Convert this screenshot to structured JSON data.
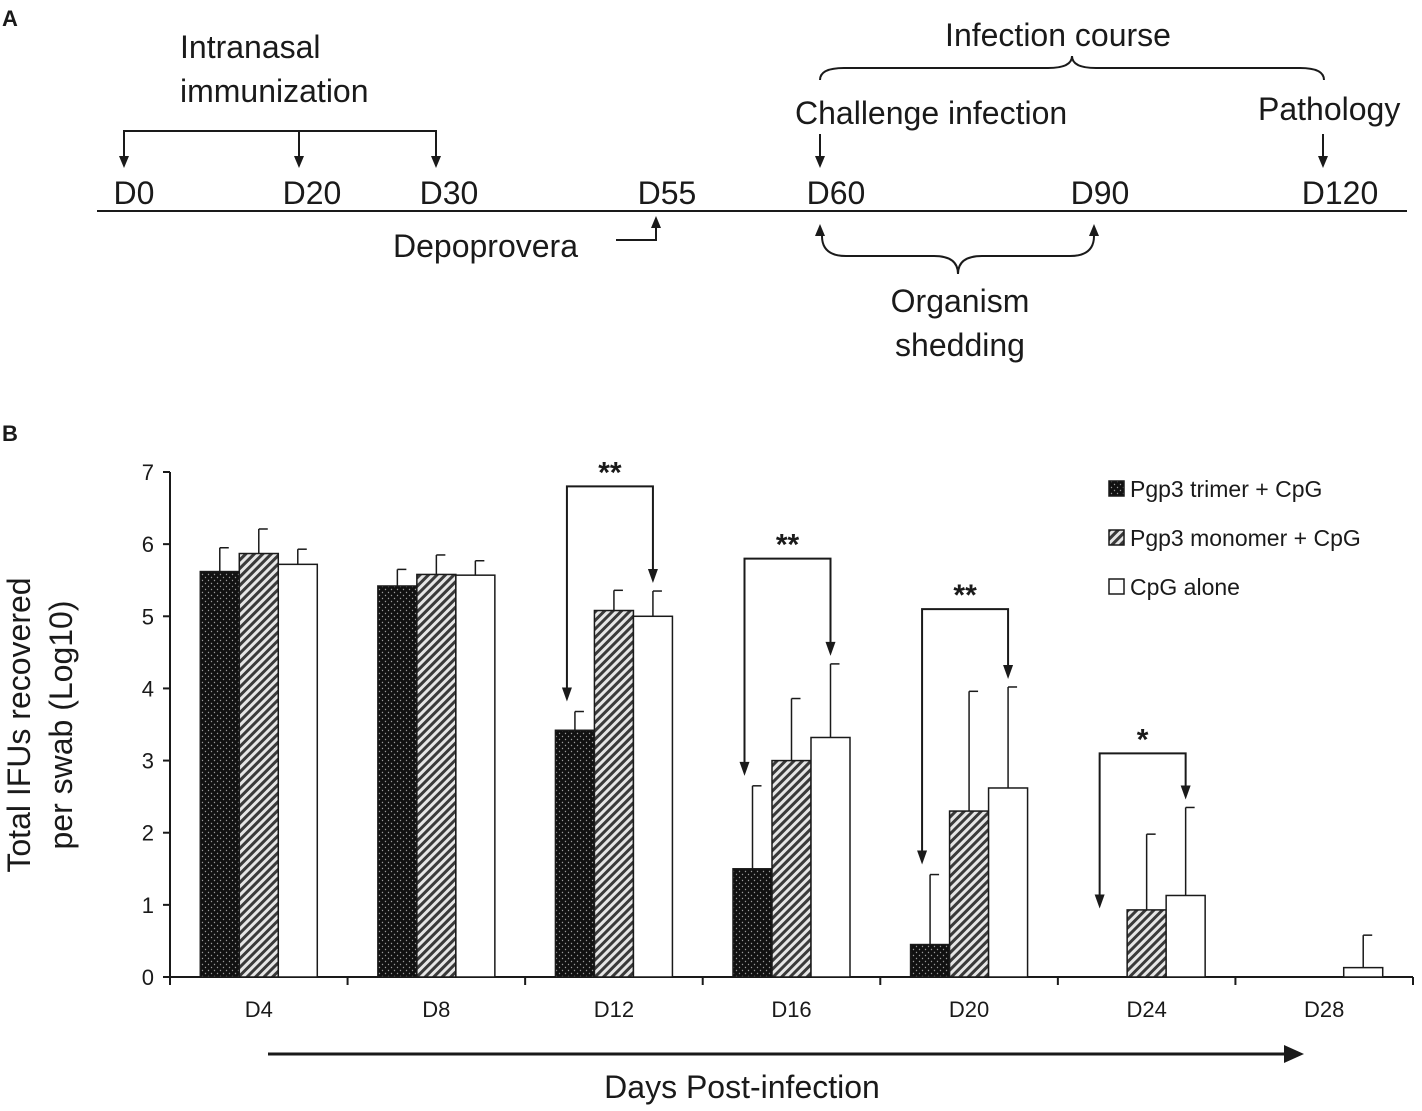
{
  "panel_a": {
    "label": "A",
    "timeline_marks": [
      "D0",
      "D20",
      "D30",
      "D55",
      "D60",
      "D90",
      "D120"
    ],
    "immunization_label_line1": "Intranasal",
    "immunization_label_line2": "immunization",
    "depoprovera_label": "Depoprovera",
    "challenge_label": "Challenge infection",
    "infection_course_label": "Infection course",
    "pathology_label": "Pathology",
    "shedding_label_line1": "Organism",
    "shedding_label_line2": "shedding"
  },
  "panel_b": {
    "label": "B",
    "arrow_label": "Days Post-infection"
  },
  "colors": {
    "ink": "#1a1a1a",
    "trimer_fill": "#111111",
    "monomer_fill": "#cfcfcf",
    "cpg_fill": "#ffffff"
  },
  "chart_data": {
    "type": "bar",
    "title": "",
    "xlabel": "",
    "ylabel_line1": "Total IFUs recovered",
    "ylabel_line2": "per swab (Log10)",
    "ylim": [
      0,
      7
    ],
    "yticks": [
      "0",
      "1",
      "2",
      "3",
      "4",
      "5",
      "6",
      "7"
    ],
    "categories": [
      "D4",
      "D8",
      "D12",
      "D16",
      "D20",
      "D24",
      "D28"
    ],
    "series": [
      {
        "name": "Pgp3 trimer + CpG",
        "pattern": "dots",
        "values": [
          5.62,
          5.42,
          3.42,
          1.5,
          0.45,
          0,
          0
        ],
        "errors": [
          0.33,
          0.23,
          0.26,
          1.15,
          0.97,
          0,
          0
        ]
      },
      {
        "name": "Pgp3 monomer + CpG",
        "pattern": "hatch",
        "values": [
          5.87,
          5.58,
          5.08,
          3.0,
          2.3,
          0.93,
          0
        ],
        "errors": [
          0.34,
          0.27,
          0.28,
          0.86,
          1.66,
          1.05,
          0
        ]
      },
      {
        "name": "CpG alone",
        "pattern": "open",
        "values": [
          5.72,
          5.57,
          5.0,
          3.32,
          2.62,
          1.13,
          0.13
        ],
        "errors": [
          0.21,
          0.2,
          0.35,
          1.02,
          1.4,
          1.22,
          0.45
        ]
      }
    ],
    "significance": [
      {
        "category": "D12",
        "label": "**",
        "bracket_top": 6.8
      },
      {
        "category": "D16",
        "label": "**",
        "bracket_top": 5.8
      },
      {
        "category": "D20",
        "label": "**",
        "bracket_top": 5.1
      },
      {
        "category": "D24",
        "label": "*",
        "bracket_top": 3.1
      }
    ],
    "legend_position": "top-right"
  }
}
